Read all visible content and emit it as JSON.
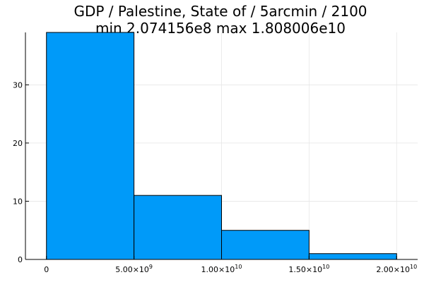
{
  "chart_data": {
    "type": "bar",
    "title": "GDP / Palestine, State of / 5arcmin / 2100",
    "subtitle": "min 2.074156e8  max 1.808006e10",
    "xlabel": "",
    "ylabel": "",
    "bins": [
      {
        "start": 0,
        "end": 5000000000,
        "value": 39
      },
      {
        "start": 5000000000,
        "end": 10000000000,
        "value": 11
      },
      {
        "start": 10000000000,
        "end": 15000000000,
        "value": 5
      },
      {
        "start": 15000000000,
        "end": 20000000000,
        "value": 1
      }
    ],
    "xlim": [
      -1200000000,
      21200000000
    ],
    "ylim": [
      0,
      39
    ],
    "x_ticks": [
      {
        "value": 0,
        "mantissa": "0",
        "exponent": ""
      },
      {
        "value": 5000000000,
        "mantissa": "5.00×10",
        "exponent": "9"
      },
      {
        "value": 10000000000,
        "mantissa": "1.00×10",
        "exponent": "10"
      },
      {
        "value": 15000000000,
        "mantissa": "1.50×10",
        "exponent": "10"
      },
      {
        "value": 20000000000,
        "mantissa": "2.00×10",
        "exponent": "10"
      }
    ],
    "y_ticks": [
      {
        "value": 0,
        "label": "0"
      },
      {
        "value": 10,
        "label": "10"
      },
      {
        "value": 20,
        "label": "20"
      },
      {
        "value": 30,
        "label": "30"
      }
    ],
    "grid": true,
    "legend": "none",
    "colors": {
      "bar_fill": "#009af9",
      "bar_stroke": "#000000",
      "grid": "#e6e6e6",
      "axis": "#000000"
    }
  }
}
